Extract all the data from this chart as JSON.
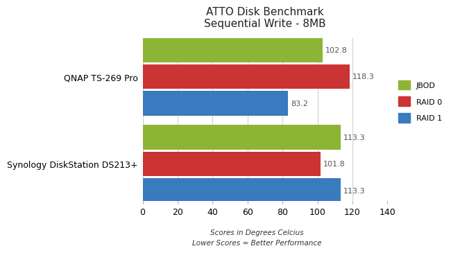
{
  "title": "ATTO Disk Benchmark\nSequential Write - 8MB",
  "groups": [
    "Synology DiskStation DS213+",
    "QNAP TS-269 Pro"
  ],
  "series": [
    "JBOD",
    "RAID 0",
    "RAID 1"
  ],
  "values": [
    [
      113.3,
      101.8,
      113.3
    ],
    [
      102.8,
      118.3,
      83.2
    ]
  ],
  "colors": [
    "#8db535",
    "#cc3333",
    "#3a7abf"
  ],
  "footnote_line1": "Scores in Degrees Celcius",
  "footnote_line2": "Lower Scores = Better Performance",
  "xlim": [
    0,
    140
  ],
  "bar_height": 0.23,
  "label_fontsize": 8,
  "title_fontsize": 11,
  "tick_fontsize": 9,
  "legend_labels": [
    "JBOD",
    "RAID 0",
    "RAID 1"
  ],
  "bg_color": "#ffffff",
  "grid_color": "#d0d0d0"
}
